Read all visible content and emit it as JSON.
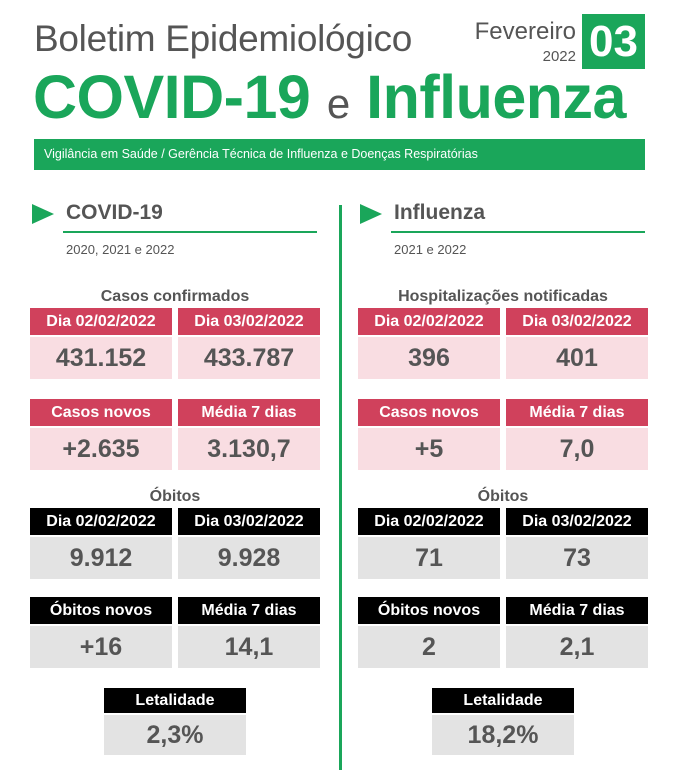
{
  "header": {
    "title": "Boletim Epidemiológico",
    "month": "Fevereiro",
    "year": "2022",
    "issue": "03",
    "main_left": "COVID-19",
    "main_conj": "e",
    "main_right": "Influenza",
    "subtitle": "Vigilância em Saúde / Gerência Técnica de Influenza e Doenças Respiratórias"
  },
  "colors": {
    "green": "#1aa65a",
    "red": "#d0415c",
    "pink": "#f9dde2",
    "black": "#000000",
    "gray": "#e3e3e3"
  },
  "covid": {
    "name": "COVID-19",
    "years": "2020, 2021 e 2022",
    "cases_title": "Casos confirmados",
    "cases": [
      {
        "label": "Dia 02/02/2022",
        "value": "431.152"
      },
      {
        "label": "Dia 03/02/2022",
        "value": "433.787"
      }
    ],
    "new_cases": [
      {
        "label": "Casos novos",
        "value": "+2.635"
      },
      {
        "label": "Média 7 dias",
        "value": "3.130,7"
      }
    ],
    "deaths_title": "Óbitos",
    "deaths": [
      {
        "label": "Dia 02/02/2022",
        "value": "9.912"
      },
      {
        "label": "Dia 03/02/2022",
        "value": "9.928"
      }
    ],
    "new_deaths": [
      {
        "label": "Óbitos novos",
        "value": "+16"
      },
      {
        "label": "Média 7 dias",
        "value": "14,1"
      }
    ],
    "lethality": {
      "label": "Letalidade",
      "value": "2,3%"
    }
  },
  "influenza": {
    "name": "Influenza",
    "years": "2021 e 2022",
    "cases_title": "Hospitalizações notificadas",
    "cases": [
      {
        "label": "Dia 02/02/2022",
        "value": "396"
      },
      {
        "label": "Dia 03/02/2022",
        "value": "401"
      }
    ],
    "new_cases": [
      {
        "label": "Casos novos",
        "value": "+5"
      },
      {
        "label": "Média 7 dias",
        "value": "7,0"
      }
    ],
    "deaths_title": "Óbitos",
    "deaths": [
      {
        "label": "Dia 02/02/2022",
        "value": "71"
      },
      {
        "label": "Dia 03/02/2022",
        "value": "73"
      }
    ],
    "new_deaths": [
      {
        "label": "Óbitos novos",
        "value": "2"
      },
      {
        "label": "Média 7 dias",
        "value": "2,1"
      }
    ],
    "lethality": {
      "label": "Letalidade",
      "value": "18,2%"
    }
  }
}
